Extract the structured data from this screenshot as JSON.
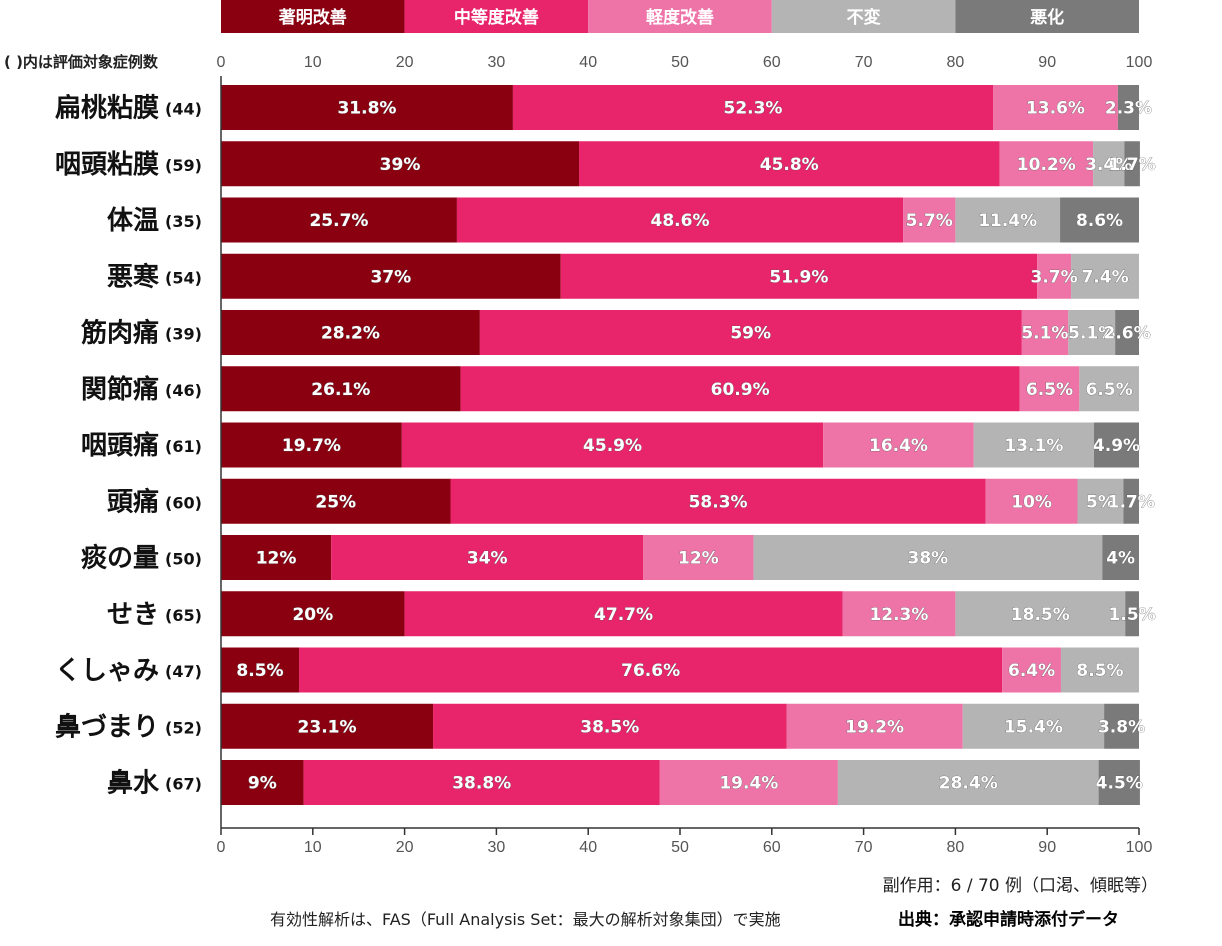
{
  "chart_data": {
    "type": "bar",
    "orientation": "horizontal",
    "stacked": true,
    "title": "",
    "xlim": [
      0,
      100
    ],
    "xticks": [
      "0",
      "10",
      "20",
      "30",
      "40",
      "50",
      "60",
      "70",
      "80",
      "90",
      "100"
    ],
    "count_note": "( )内は評価対象症例数",
    "legend_position": "top",
    "series": [
      {
        "name": "著明改善",
        "color": "#8b0010"
      },
      {
        "name": "中等度改善",
        "color": "#e8246a"
      },
      {
        "name": "軽度改善",
        "color": "#ee74a8"
      },
      {
        "name": "不変",
        "color": "#b4b4b4"
      },
      {
        "name": "悪化",
        "color": "#7a7a7a"
      }
    ],
    "categories": [
      {
        "name": "扁桃粘膜",
        "count": "(44)",
        "values": [
          31.8,
          52.3,
          13.6,
          0,
          2.3
        ],
        "labels": [
          "31.8%",
          "52.3%",
          "13.6%",
          "",
          "2.3%"
        ]
      },
      {
        "name": "咽頭粘膜",
        "count": "(59)",
        "values": [
          39,
          45.8,
          10.2,
          3.4,
          1.7
        ],
        "labels": [
          "39%",
          "45.8%",
          "10.2%",
          "3.4%",
          "1.7%"
        ]
      },
      {
        "name": "体温",
        "count": "(35)",
        "values": [
          25.7,
          48.6,
          5.7,
          11.4,
          8.6
        ],
        "labels": [
          "25.7%",
          "48.6%",
          "5.7%",
          "11.4%",
          "8.6%"
        ]
      },
      {
        "name": "悪寒",
        "count": "(54)",
        "values": [
          37,
          51.9,
          3.7,
          7.4,
          0
        ],
        "labels": [
          "37%",
          "51.9%",
          "3.7%",
          "7.4%",
          ""
        ]
      },
      {
        "name": "筋肉痛",
        "count": "(39)",
        "values": [
          28.2,
          59,
          5.1,
          5.1,
          2.6
        ],
        "labels": [
          "28.2%",
          "59%",
          "5.1%",
          "5.1%",
          "2.6%"
        ]
      },
      {
        "name": "関節痛",
        "count": "(46)",
        "values": [
          26.1,
          60.9,
          6.5,
          6.5,
          0
        ],
        "labels": [
          "26.1%",
          "60.9%",
          "6.5%",
          "6.5%",
          ""
        ]
      },
      {
        "name": "咽頭痛",
        "count": "(61)",
        "values": [
          19.7,
          45.9,
          16.4,
          13.1,
          4.9
        ],
        "labels": [
          "19.7%",
          "45.9%",
          "16.4%",
          "13.1%",
          "4.9%"
        ]
      },
      {
        "name": "頭痛",
        "count": "(60)",
        "values": [
          25,
          58.3,
          10,
          5,
          1.7
        ],
        "labels": [
          "25%",
          "58.3%",
          "10%",
          "5%",
          "1.7%"
        ]
      },
      {
        "name": "痰の量",
        "count": "(50)",
        "values": [
          12,
          34,
          12,
          38,
          4
        ],
        "labels": [
          "12%",
          "34%",
          "12%",
          "38%",
          "4%"
        ]
      },
      {
        "name": "せき",
        "count": "(65)",
        "values": [
          20,
          47.7,
          12.3,
          18.5,
          1.5
        ],
        "labels": [
          "20%",
          "47.7%",
          "12.3%",
          "18.5%",
          "1.5%"
        ]
      },
      {
        "name": "くしゃみ",
        "count": "(47)",
        "values": [
          8.5,
          76.6,
          6.4,
          8.5,
          0
        ],
        "labels": [
          "8.5%",
          "76.6%",
          "6.4%",
          "8.5%",
          ""
        ]
      },
      {
        "name": "鼻づまり",
        "count": "(52)",
        "values": [
          23.1,
          38.5,
          19.2,
          15.4,
          3.8
        ],
        "labels": [
          "23.1%",
          "38.5%",
          "19.2%",
          "15.4%",
          "3.8%"
        ]
      },
      {
        "name": "鼻水",
        "count": "(67)",
        "values": [
          9,
          38.8,
          19.4,
          28.4,
          4.5
        ],
        "labels": [
          "9%",
          "38.8%",
          "19.4%",
          "28.4%",
          "4.5%"
        ]
      }
    ]
  },
  "footer": {
    "side_effects": "副作用：6 / 70 例（口渇、傾眠等）",
    "fas_note": "有効性解析は、FAS（Full Analysis Set：最大の解析対象集団）で実施",
    "source": "出典：承認申請時添付データ"
  }
}
